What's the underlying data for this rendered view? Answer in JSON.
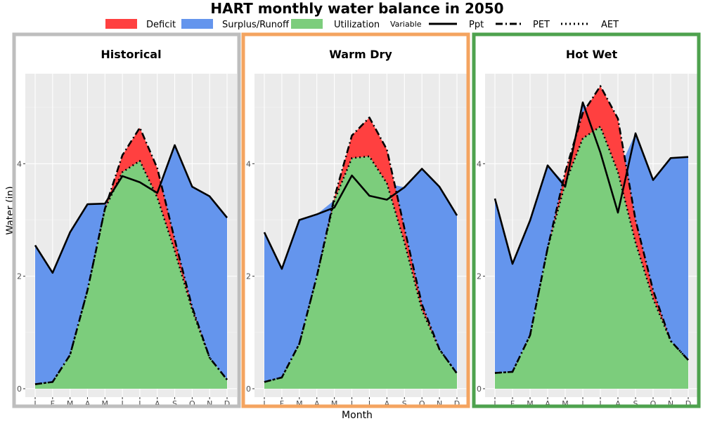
{
  "chart_data": {
    "type": "area",
    "title": "HART monthly water balance in 2050",
    "xlabel": "Month",
    "ylabel": "Water (in)",
    "categories": [
      "J",
      "F",
      "M",
      "A",
      "M",
      "J",
      "J",
      "A",
      "S",
      "O",
      "N",
      "D"
    ],
    "ylim": [
      -0.15,
      5.6
    ],
    "yticks": [
      0,
      2,
      4
    ],
    "legend": {
      "fill_entries": [
        {
          "name": "Deficit",
          "color": "#ff4040"
        },
        {
          "name": "Surplus/Runoff",
          "color": "#6495ed"
        },
        {
          "name": "Utilization",
          "color": "#7ccd7c"
        }
      ],
      "line_title": "Variable",
      "line_entries": [
        {
          "name": "Ppt",
          "dash": "solid"
        },
        {
          "name": "PET",
          "dash": "dashdot"
        },
        {
          "name": "AET",
          "dash": "dotted"
        }
      ],
      "position": "top"
    },
    "panels": [
      {
        "title": "Historical",
        "border_color": "#bebebe",
        "series": [
          {
            "name": "Ppt",
            "values": [
              2.55,
              2.06,
              2.78,
              3.28,
              3.29,
              3.78,
              3.67,
              3.48,
              4.33,
              3.59,
              3.42,
              3.04
            ]
          },
          {
            "name": "PET",
            "values": [
              0.08,
              0.12,
              0.6,
              1.75,
              3.2,
              4.15,
              4.64,
              3.92,
              2.65,
              1.45,
              0.55,
              0.16
            ]
          },
          {
            "name": "AET",
            "values": [
              0.08,
              0.12,
              0.6,
              1.75,
              3.2,
              3.85,
              4.05,
              3.4,
              2.45,
              1.4,
              0.55,
              0.16
            ]
          }
        ]
      },
      {
        "title": "Warm Dry",
        "border_color": "#f4a460",
        "series": [
          {
            "name": "Ppt",
            "values": [
              2.78,
              2.13,
              3.0,
              3.1,
              3.22,
              3.79,
              3.43,
              3.36,
              3.58,
              3.91,
              3.59,
              3.08
            ]
          },
          {
            "name": "PET",
            "values": [
              0.12,
              0.2,
              0.8,
              2.0,
              3.4,
              4.5,
              4.82,
              4.25,
              2.85,
              1.5,
              0.7,
              0.27
            ]
          },
          {
            "name": "AET",
            "values": [
              0.12,
              0.2,
              0.8,
              2.0,
              3.35,
              4.1,
              4.13,
              3.65,
              2.6,
              1.4,
              0.7,
              0.27
            ]
          }
        ]
      },
      {
        "title": "Hot Wet",
        "border_color": "#4ea24e",
        "series": [
          {
            "name": "Ppt",
            "values": [
              3.38,
              2.22,
              2.99,
              3.97,
              3.59,
              5.09,
              4.2,
              3.13,
              4.54,
              3.71,
              4.1,
              4.12
            ]
          },
          {
            "name": "PET",
            "values": [
              0.28,
              0.3,
              0.95,
              2.5,
              3.85,
              4.9,
              5.38,
              4.8,
              3.0,
              1.75,
              0.85,
              0.51
            ]
          },
          {
            "name": "AET",
            "values": [
              0.28,
              0.3,
              0.95,
              2.5,
              3.65,
              4.45,
              4.66,
              3.85,
              2.6,
              1.6,
              0.85,
              0.51
            ]
          }
        ]
      }
    ]
  }
}
